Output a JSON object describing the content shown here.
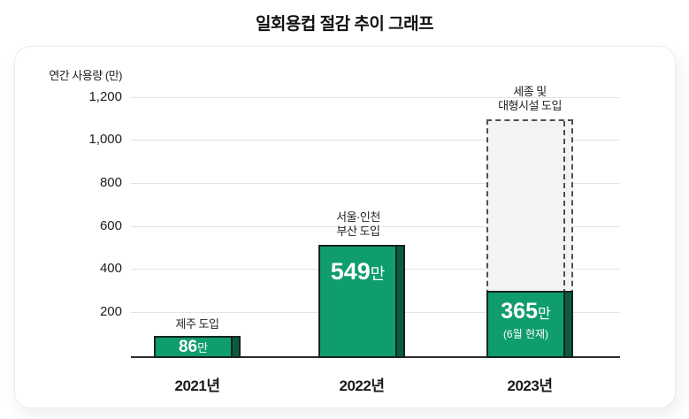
{
  "page": {
    "title": "일회용컵 절감 추이 그래프"
  },
  "chart": {
    "y_axis": {
      "label": "연간 사용량 (만)",
      "ticks": [
        "1,200",
        "1,000",
        "800",
        "600",
        "400",
        "200"
      ]
    },
    "bars": [
      {
        "category": "2021년",
        "annotation": "제주 도입",
        "value": "86",
        "unit": "만"
      },
      {
        "category": "2022년",
        "annotation_line1": "서울·인천",
        "annotation_line2": "부산 도입",
        "value": "549",
        "unit": "만"
      },
      {
        "category": "2023년",
        "annotation_line1": "세종 및",
        "annotation_line2": "대형시설 도입",
        "value": "365",
        "unit": "만",
        "note": "(6월 현재)"
      }
    ],
    "colors": {
      "bar_face": "#0F9C6F",
      "bar_side": "#0A5C40",
      "bar_border": "#17251E",
      "ghost_fill": "#F3F3F3",
      "ghost_border": "#4F4F4F",
      "gridline": "#E3E3E3",
      "axis": "#2B2B2B"
    }
  },
  "chart_data": {
    "type": "bar",
    "title": "일회용컵 절감 추이 그래프",
    "ylabel": "연간 사용량 (만)",
    "categories": [
      "2021년",
      "2022년",
      "2023년"
    ],
    "values": [
      86,
      549,
      365
    ],
    "value_labels": [
      "86만",
      "549만",
      "365만 (6월 현재)"
    ],
    "annotations": [
      "제주 도입",
      "서울·인천 부산 도입",
      "세종 및 대형시설 도입"
    ],
    "projected_bar": {
      "category": "2023년",
      "value": 1100,
      "style": "dashed-outline"
    },
    "ylim": [
      0,
      1200
    ],
    "yticks": [
      200,
      400,
      600,
      800,
      1000,
      1200
    ],
    "grid": true,
    "legend": false
  }
}
